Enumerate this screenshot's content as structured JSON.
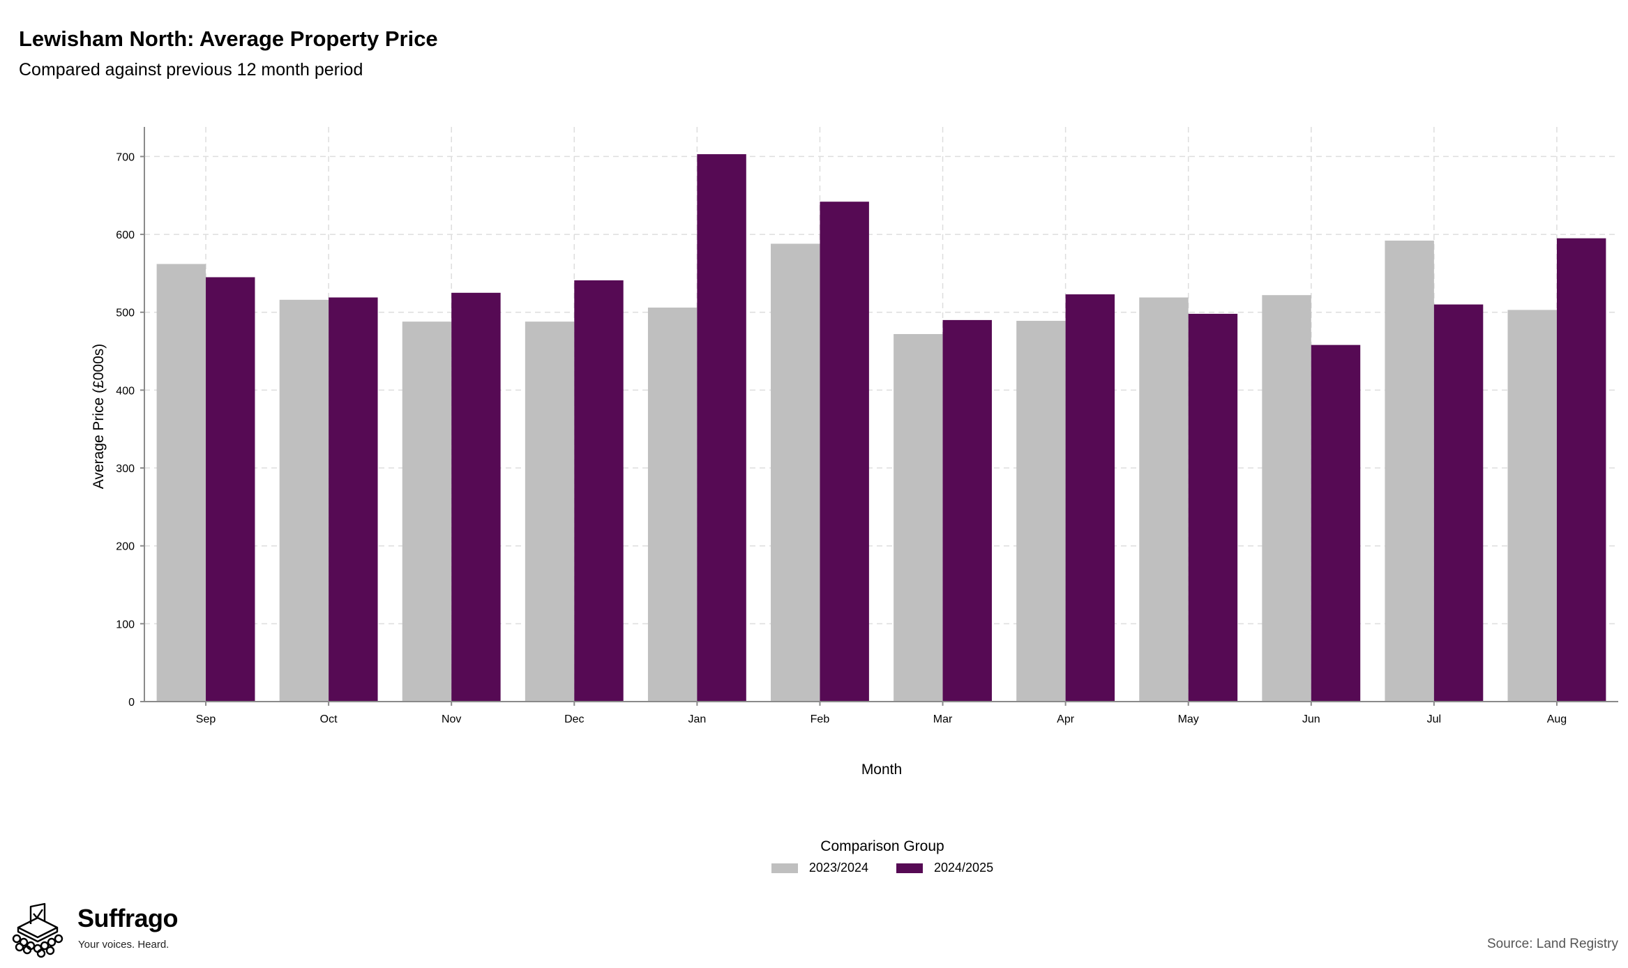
{
  "title": "Lewisham North: Average Property Price",
  "subtitle": "Compared against previous 12 month period",
  "source": "Source: Land Registry",
  "logo": {
    "name": "Suffrago",
    "tagline": "Your voices. Heard.",
    "icon": "ballot-box-icon"
  },
  "colors": {
    "series_2023": "#bfbfbf",
    "series_2024": "#560a54"
  },
  "legend": {
    "title": "Comparison Group"
  },
  "chart_data": {
    "type": "bar",
    "xlabel": "Month",
    "ylabel": "Average Price (£000s)",
    "ylim": [
      0,
      738
    ],
    "yticks": [
      "0",
      "100",
      "200",
      "300",
      "400",
      "500",
      "600",
      "700"
    ],
    "grid": true,
    "legend_position": "bottom",
    "categories": [
      "Sep",
      "Oct",
      "Nov",
      "Dec",
      "Jan",
      "Feb",
      "Mar",
      "Apr",
      "May",
      "Jun",
      "Jul",
      "Aug"
    ],
    "series": [
      {
        "name": "2023/2024",
        "color": "#bfbfbf",
        "values": [
          562,
          516,
          488,
          488,
          506,
          588,
          472,
          489,
          519,
          522,
          592,
          503
        ]
      },
      {
        "name": "2024/2025",
        "color": "#560a54",
        "values": [
          545,
          519,
          525,
          541,
          703,
          642,
          490,
          523,
          498,
          458,
          510,
          595
        ]
      }
    ]
  }
}
